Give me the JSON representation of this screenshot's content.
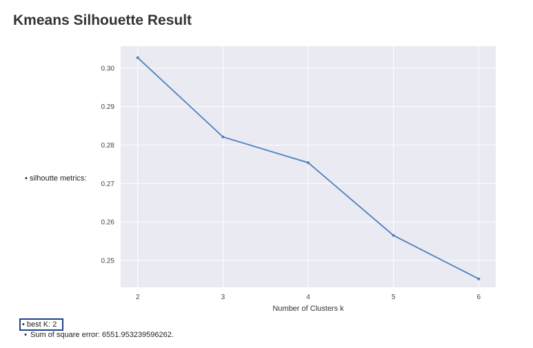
{
  "title": "Kmeans Silhouette Result",
  "metrics_label": "silhoutte metrics:",
  "best_k_label": "best K: 2",
  "sse_label": "Sum of square error: 6551.953239596262.",
  "bullet": "•",
  "chart_data": {
    "type": "line",
    "title": "",
    "xlabel": "Number of Clusters k",
    "ylabel": "",
    "x": [
      2,
      3,
      4,
      5,
      6
    ],
    "series": [
      {
        "values": [
          0.3027,
          0.2821,
          0.2754,
          0.2565,
          0.2452
        ]
      }
    ],
    "xticks": [
      "2",
      "3",
      "4",
      "5",
      "6"
    ],
    "yticks": [
      "0.25",
      "0.26",
      "0.27",
      "0.28",
      "0.29",
      "0.30"
    ],
    "xlim": [
      1.8,
      6.2
    ],
    "ylim": [
      0.243,
      0.3057
    ],
    "grid": true,
    "line_color": "#4c81bf",
    "axes_bg": "#eaeaf2",
    "grid_color": "#ffffff"
  }
}
